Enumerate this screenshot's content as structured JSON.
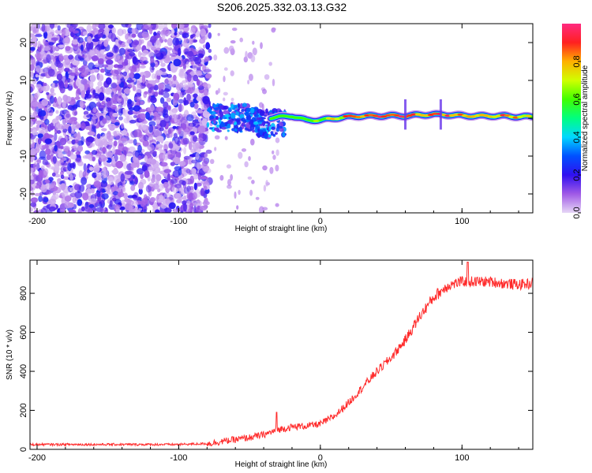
{
  "title": "S206.2025.332.03.13.G32",
  "chart_data": [
    {
      "type": "heatmap",
      "name": "spectrogram",
      "xlabel": "Height of straight line (km)",
      "ylabel": "Frequency (Hz)",
      "xlim": [
        -205,
        150
      ],
      "ylim": [
        -25,
        25
      ],
      "xticks": [
        -200,
        -100,
        0,
        100
      ],
      "yticks": [
        -20,
        -10,
        0,
        10,
        20
      ],
      "colorbar": {
        "label": "Normalized spectral amplitude",
        "range": [
          0,
          1
        ],
        "ticks": [
          0.0,
          0.2,
          0.4,
          0.6,
          0.8
        ],
        "colors": [
          "#e4d4f4",
          "#8a2be2",
          "#1010ff",
          "#00e0ff",
          "#00ff66",
          "#aaff00",
          "#ffc800",
          "#ff2020",
          "#ff3399"
        ]
      },
      "noise_region_x": [
        -205,
        -78
      ],
      "transition_region_x": [
        -78,
        -30
      ],
      "tone_band": [
        {
          "x": -30,
          "freq": 0.3,
          "amp": 0.45
        },
        {
          "x": -20,
          "freq": 0.6,
          "amp": 0.5
        },
        {
          "x": -10,
          "freq": -0.5,
          "amp": 0.5
        },
        {
          "x": 0,
          "freq": -0.5,
          "amp": 0.6
        },
        {
          "x": 10,
          "freq": 0.0,
          "amp": 0.7
        },
        {
          "x": 20,
          "freq": 0.4,
          "amp": 0.8
        },
        {
          "x": 30,
          "freq": 0.6,
          "amp": 0.85
        },
        {
          "x": 40,
          "freq": 0.6,
          "amp": 0.9
        },
        {
          "x": 50,
          "freq": 0.7,
          "amp": 0.9
        },
        {
          "x": 60,
          "freq": 0.6,
          "amp": 0.85
        },
        {
          "x": 70,
          "freq": 0.9,
          "amp": 0.85
        },
        {
          "x": 80,
          "freq": 1.0,
          "amp": 0.9
        },
        {
          "x": 90,
          "freq": 0.9,
          "amp": 0.85
        },
        {
          "x": 100,
          "freq": 0.7,
          "amp": 0.85
        },
        {
          "x": 110,
          "freq": 0.6,
          "amp": 0.8
        },
        {
          "x": 120,
          "freq": 0.6,
          "amp": 0.85
        },
        {
          "x": 130,
          "freq": 0.6,
          "amp": 0.8
        },
        {
          "x": 140,
          "freq": 0.4,
          "amp": 0.75
        },
        {
          "x": 150,
          "freq": 0.4,
          "amp": 0.7
        }
      ]
    },
    {
      "type": "line",
      "name": "snr",
      "xlabel": "Height of straight line (km)",
      "ylabel": "SNR (10 * v/v)",
      "xlim": [
        -205,
        150
      ],
      "ylim": [
        0,
        970
      ],
      "xticks": [
        -200,
        -100,
        0,
        100
      ],
      "yticks": [
        0,
        200,
        400,
        600,
        800
      ],
      "color": "#ff2a2a",
      "series": [
        {
          "name": "SNR",
          "x": [
            -205,
            -150,
            -100,
            -78,
            -70,
            -60,
            -50,
            -40,
            -30,
            -20,
            -10,
            0,
            10,
            20,
            30,
            40,
            50,
            60,
            70,
            80,
            90,
            100,
            110,
            120,
            130,
            140,
            150
          ],
          "y": [
            25,
            25,
            25,
            30,
            40,
            50,
            60,
            75,
            100,
            115,
            120,
            130,
            170,
            240,
            320,
            400,
            470,
            560,
            680,
            780,
            840,
            860,
            860,
            860,
            850,
            845,
            850
          ]
        }
      ]
    }
  ]
}
